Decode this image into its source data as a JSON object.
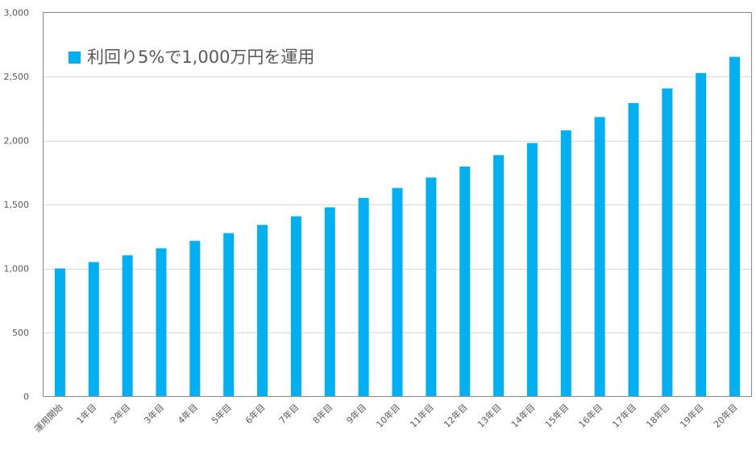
{
  "chart_data": {
    "type": "bar",
    "title": "",
    "xlabel": "",
    "ylabel": "",
    "ylim": [
      0,
      3000
    ],
    "yticks": [
      0,
      500,
      1000,
      1500,
      2000,
      2500,
      3000
    ],
    "ytick_labels": [
      "0",
      "500",
      "1,000",
      "1,500",
      "2,000",
      "2,500",
      "3,000"
    ],
    "grid": true,
    "legend_placement": "top-left",
    "categories": [
      "運用開始",
      "1年目",
      "2年目",
      "3年目",
      "4年目",
      "5年目",
      "6年目",
      "7年目",
      "8年目",
      "9年目",
      "10年目",
      "11年目",
      "12年目",
      "13年目",
      "14年目",
      "15年目",
      "16年目",
      "17年目",
      "18年目",
      "19年目",
      "20年目"
    ],
    "series": [
      {
        "name": "利回り5%で1,000万円を運用",
        "color": "#00B0F0",
        "values": [
          1000,
          1050,
          1102.5,
          1157.6,
          1215.5,
          1276.3,
          1340.1,
          1407.1,
          1477.5,
          1551.3,
          1628.9,
          1710.3,
          1795.9,
          1885.6,
          1979.9,
          2078.9,
          2182.9,
          2292.0,
          2406.6,
          2527.0,
          2653.3
        ]
      }
    ]
  }
}
